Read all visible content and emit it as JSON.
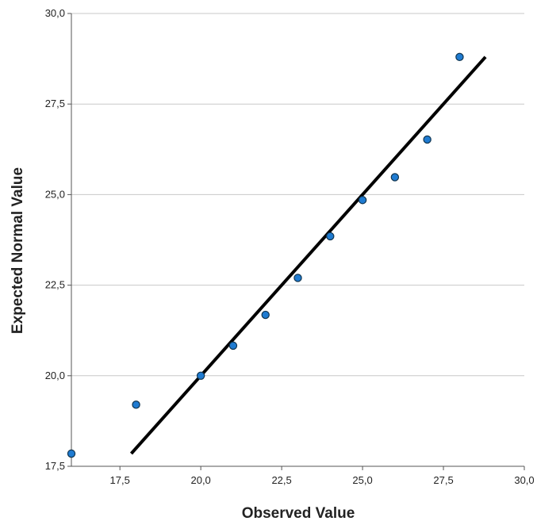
{
  "chart_data": {
    "type": "scatter",
    "title": "",
    "xlabel": "Observed Value",
    "ylabel": "Expected Normal Value",
    "xlim": [
      16,
      30
    ],
    "ylim": [
      17.5,
      30
    ],
    "x_ticks": [
      17.5,
      20.0,
      22.5,
      25.0,
      27.5,
      30.0
    ],
    "x_tick_labels": [
      "17,5",
      "20,0",
      "22,5",
      "25,0",
      "27,5",
      "30,0"
    ],
    "y_ticks": [
      17.5,
      20.0,
      22.5,
      25.0,
      27.5,
      30.0
    ],
    "y_tick_labels": [
      "17,5",
      "20,0",
      "22,5",
      "25,0",
      "27,5",
      "30,0"
    ],
    "grid": "horizontal",
    "legend": "none",
    "points": [
      {
        "x": 16,
        "y": 17.85
      },
      {
        "x": 18,
        "y": 19.2
      },
      {
        "x": 20,
        "y": 20.0
      },
      {
        "x": 21,
        "y": 20.83
      },
      {
        "x": 22,
        "y": 21.68
      },
      {
        "x": 23,
        "y": 22.7
      },
      {
        "x": 24,
        "y": 23.85
      },
      {
        "x": 25,
        "y": 24.85
      },
      {
        "x": 26,
        "y": 25.48
      },
      {
        "x": 27,
        "y": 26.52
      },
      {
        "x": 28,
        "y": 28.8
      }
    ],
    "reference_line": {
      "x1": 17.85,
      "y1": 17.85,
      "x2": 28.8,
      "y2": 28.8
    },
    "colors": {
      "point_fill": "#1f7bd1",
      "point_stroke": "#10344f",
      "line": "#000000",
      "grid": "#c8c8c8",
      "axis": "#555555"
    }
  }
}
